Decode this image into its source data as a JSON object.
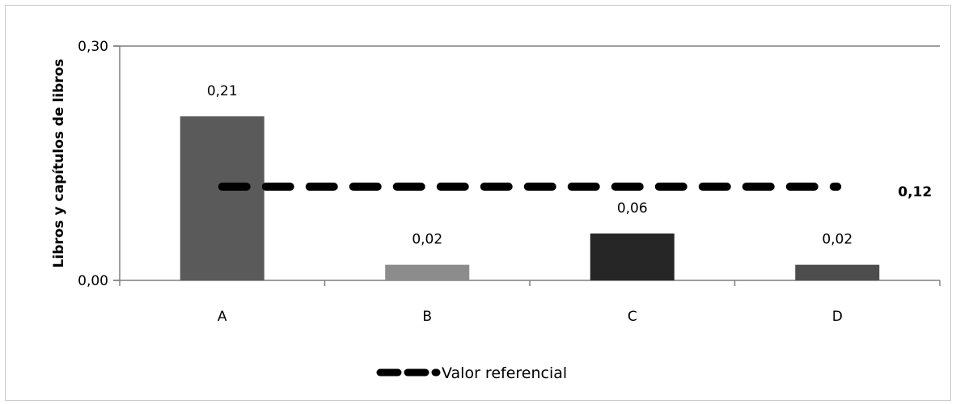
{
  "chart_data": {
    "type": "bar",
    "categories": [
      "A",
      "B",
      "C",
      "D"
    ],
    "values": [
      0.21,
      0.02,
      0.06,
      0.02
    ],
    "value_labels": [
      "0,21",
      "0,02",
      "0,06",
      "0,02"
    ],
    "bar_colors": [
      "#5a5a5a",
      "#8c8c8c",
      "#262626",
      "#4d4d4d"
    ],
    "ylabel": "Libros y capítulos de libros",
    "xlabel": "",
    "ylim": [
      0,
      0.3
    ],
    "y_ticks": [
      0.0,
      0.3
    ],
    "y_tick_labels": [
      "0,00",
      "0,30"
    ],
    "reference_line": {
      "name": "Valor referencial",
      "value": 0.12,
      "label": "0,12",
      "style": "dashed",
      "color": "#000000"
    },
    "grid": false,
    "legend_position": "bottom"
  }
}
